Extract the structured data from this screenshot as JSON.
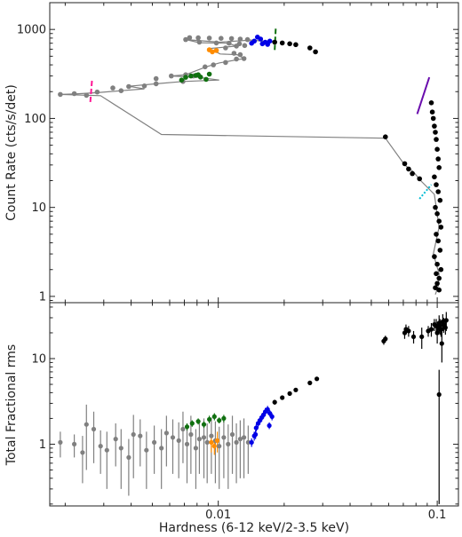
{
  "chart_data": [
    {
      "type": "scatter",
      "panel": "top",
      "xlabel": "",
      "ylabel": "Count Rate (cts/s/det)",
      "xscale": "log",
      "yscale": "log",
      "xlim": [
        0.0017,
        0.125
      ],
      "ylim": [
        0.85,
        2000
      ],
      "yticks": [
        1,
        10,
        100,
        1000
      ],
      "ytick_labels": [
        "1",
        "10",
        "100",
        "1000"
      ],
      "grid": false,
      "series": [
        {
          "color": "#808080",
          "role": "track-line",
          "points": [
            [
              0.0181,
              720
            ],
            [
              0.0141,
              760
            ],
            [
              0.0102,
              720
            ],
            [
              0.0071,
              770
            ],
            [
              0.0082,
              710
            ],
            [
              0.0111,
              700
            ],
            [
              0.0121,
              650
            ],
            [
              0.0091,
              610
            ],
            [
              0.0102,
              530
            ],
            [
              0.0122,
              520
            ],
            [
              0.0131,
              470
            ],
            [
              0.0101,
              420
            ],
            [
              0.0088,
              380
            ],
            [
              0.0071,
              310
            ],
            [
              0.0061,
              300
            ],
            [
              0.0081,
              290
            ],
            [
              0.0101,
              270
            ],
            [
              0.0069,
              260
            ],
            [
              0.0052,
              245
            ],
            [
              0.0039,
              230
            ],
            [
              0.0046,
              215
            ],
            [
              0.0036,
              205
            ],
            [
              0.0028,
              195
            ],
            [
              0.0022,
              188
            ],
            [
              0.0019,
              186
            ],
            [
              0.0029,
              180
            ],
            [
              0.0055,
              66
            ],
            [
              0.058,
              60
            ],
            [
              0.071,
              30
            ],
            [
              0.078,
              25
            ],
            [
              0.084,
              20
            ],
            [
              0.097,
              14
            ],
            [
              0.102,
              6
            ],
            [
              0.096,
              3
            ],
            [
              0.102,
              1.8
            ],
            [
              0.101,
              1.3
            ],
            [
              0.098,
              1.05
            ]
          ]
        },
        {
          "color": "#808080",
          "role": "points",
          "points": [
            [
              0.0071,
              770
            ],
            [
              0.0074,
              810
            ],
            [
              0.0081,
              805
            ],
            [
              0.0091,
              800
            ],
            [
              0.0103,
              795
            ],
            [
              0.0115,
              790
            ],
            [
              0.0126,
              780
            ],
            [
              0.0136,
              770
            ],
            [
              0.0082,
              720
            ],
            [
              0.0098,
              705
            ],
            [
              0.0112,
              700
            ],
            [
              0.0125,
              690
            ],
            [
              0.0108,
              620
            ],
            [
              0.0121,
              650
            ],
            [
              0.0132,
              660
            ],
            [
              0.0118,
              540
            ],
            [
              0.0126,
              520
            ],
            [
              0.0131,
              470
            ],
            [
              0.0121,
              465
            ],
            [
              0.0108,
              425
            ],
            [
              0.0095,
              400
            ],
            [
              0.0087,
              380
            ],
            [
              0.0071,
              310
            ],
            [
              0.0077,
              300
            ],
            [
              0.0061,
              300
            ],
            [
              0.0052,
              280
            ],
            [
              0.0069,
              260
            ],
            [
              0.0052,
              245
            ],
            [
              0.0046,
              232
            ],
            [
              0.0039,
              228
            ],
            [
              0.0033,
              220
            ],
            [
              0.0036,
              205
            ],
            [
              0.0028,
              198
            ],
            [
              0.0022,
              190
            ],
            [
              0.0019,
              186
            ],
            [
              0.0025,
              182
            ]
          ]
        },
        {
          "color": "#0000e6",
          "role": "points",
          "points": [
            [
              0.0142,
              700
            ],
            [
              0.0146,
              740
            ],
            [
              0.0151,
              820
            ],
            [
              0.0156,
              780
            ],
            [
              0.0159,
              690
            ],
            [
              0.0164,
              720
            ],
            [
              0.0168,
              680
            ],
            [
              0.0172,
              740
            ]
          ]
        },
        {
          "color": "#107010",
          "role": "points",
          "points": [
            [
              0.0071,
              290
            ],
            [
              0.0075,
              300
            ],
            [
              0.0079,
              305
            ],
            [
              0.0083,
              292
            ],
            [
              0.0088,
              275
            ],
            [
              0.0081,
              310
            ],
            [
              0.0091,
              315
            ],
            [
              0.0068,
              270
            ]
          ]
        },
        {
          "color": "#ff8c00",
          "role": "points",
          "points": [
            [
              0.0091,
              590
            ],
            [
              0.0094,
              560
            ],
            [
              0.0098,
              580
            ]
          ]
        },
        {
          "color": "#000000",
          "role": "points",
          "points": [
            [
              0.0181,
              720
            ],
            [
              0.0196,
              705
            ],
            [
              0.0212,
              690
            ],
            [
              0.0226,
              675
            ],
            [
              0.0262,
              620
            ],
            [
              0.0278,
              560
            ],
            [
              0.058,
              62
            ],
            [
              0.071,
              31
            ],
            [
              0.074,
              27
            ],
            [
              0.077,
              24
            ],
            [
              0.083,
              21
            ],
            [
              0.094,
              150
            ],
            [
              0.095,
              118
            ],
            [
              0.096,
              100
            ],
            [
              0.097,
              82
            ],
            [
              0.098,
              70
            ],
            [
              0.099,
              58
            ],
            [
              0.1,
              45
            ],
            [
              0.101,
              35
            ],
            [
              0.102,
              28
            ],
            [
              0.097,
              22
            ],
            [
              0.099,
              18
            ],
            [
              0.101,
              15
            ],
            [
              0.103,
              12
            ],
            [
              0.098,
              10
            ],
            [
              0.1,
              8.5
            ],
            [
              0.102,
              7
            ],
            [
              0.104,
              6
            ],
            [
              0.099,
              5
            ],
            [
              0.101,
              4.2
            ],
            [
              0.103,
              3.3
            ],
            [
              0.097,
              2.8
            ],
            [
              0.1,
              2.3
            ],
            [
              0.104,
              2
            ],
            [
              0.099,
              1.8
            ],
            [
              0.102,
              1.6
            ],
            [
              0.1,
              1.4
            ],
            [
              0.098,
              1.25
            ],
            [
              0.102,
              1.18
            ]
          ]
        }
      ],
      "markers": [
        {
          "color": "#ff1493",
          "style": "dashed",
          "from": [
            0.00265,
            265
          ],
          "to": [
            0.0026,
            145
          ]
        },
        {
          "color": "#107010",
          "style": "dashed",
          "from": [
            0.0183,
            1020
          ],
          "to": [
            0.0181,
            580
          ]
        },
        {
          "color": "#6a0dad",
          "style": "solid",
          "from": [
            0.081,
            112
          ],
          "to": [
            0.092,
            290
          ]
        },
        {
          "color": "#00bcd4",
          "style": "dotted",
          "from": [
            0.083,
            12.5
          ],
          "to": [
            0.094,
            18
          ]
        }
      ]
    },
    {
      "type": "scatter",
      "panel": "bottom",
      "xlabel": "Hardness (6-12 keV/2-3.5 keV)",
      "ylabel": "Total Fractional rms",
      "xscale": "log",
      "yscale": "log",
      "xlim": [
        0.0017,
        0.125
      ],
      "ylim": [
        0.19,
        45
      ],
      "xticks": [
        0.01,
        0.1
      ],
      "xtick_labels": [
        "0.01",
        "0.1"
      ],
      "yticks": [
        1,
        10
      ],
      "ytick_labels": [
        "1",
        "10"
      ],
      "grid": false,
      "series": [
        {
          "color": "#808080",
          "points": [
            [
              0.0019,
              1.05
            ],
            [
              0.0022,
              1.0
            ],
            [
              0.0024,
              0.8
            ],
            [
              0.0025,
              1.7
            ],
            [
              0.0027,
              1.5
            ],
            [
              0.0029,
              0.95
            ],
            [
              0.0031,
              0.85
            ],
            [
              0.0034,
              1.15
            ],
            [
              0.0036,
              0.9
            ],
            [
              0.0039,
              0.7
            ],
            [
              0.0041,
              1.3
            ],
            [
              0.0044,
              1.25
            ],
            [
              0.0047,
              0.85
            ],
            [
              0.0051,
              1.05
            ],
            [
              0.0055,
              0.9
            ],
            [
              0.0058,
              1.35
            ],
            [
              0.0062,
              1.2
            ],
            [
              0.0066,
              1.1
            ],
            [
              0.0069,
              1.5
            ],
            [
              0.0072,
              1.0
            ],
            [
              0.0075,
              1.3
            ],
            [
              0.0079,
              0.9
            ],
            [
              0.0082,
              1.15
            ],
            [
              0.0086,
              1.2
            ],
            [
              0.0089,
              1.05
            ],
            [
              0.0093,
              1.25
            ],
            [
              0.0097,
              1.1
            ],
            [
              0.0101,
              0.95
            ],
            [
              0.0106,
              1.2
            ],
            [
              0.0111,
              1.0
            ],
            [
              0.0116,
              1.3
            ],
            [
              0.0121,
              1.05
            ],
            [
              0.0126,
              1.15
            ],
            [
              0.0131,
              1.2
            ],
            [
              0.0137,
              1.05
            ]
          ],
          "errors": [
            0.35,
            0.3,
            0.45,
            1.2,
            0.9,
            0.5,
            0.55,
            0.6,
            0.6,
            0.45,
            0.9,
            0.7,
            0.55,
            0.6,
            0.6,
            0.8,
            0.75,
            0.7,
            0.9,
            0.65,
            0.85,
            0.6,
            0.7,
            0.8,
            0.7,
            0.8,
            0.75,
            0.65,
            0.8,
            0.7,
            0.85,
            0.7,
            0.75,
            0.8,
            0.6
          ]
        },
        {
          "color": "#107010",
          "points": [
            [
              0.0072,
              1.6
            ],
            [
              0.0076,
              1.75
            ],
            [
              0.0081,
              1.85
            ],
            [
              0.0086,
              1.7
            ],
            [
              0.0091,
              1.95
            ],
            [
              0.0096,
              2.1
            ],
            [
              0.0101,
              1.9
            ],
            [
              0.0106,
              2.0
            ]
          ],
          "errors": [
            0.15,
            0.15,
            0.15,
            0.15,
            0.2,
            0.2,
            0.15,
            0.2
          ]
        },
        {
          "color": "#ff8c00",
          "points": [
            [
              0.0093,
              1.05
            ],
            [
              0.0096,
              0.95
            ],
            [
              0.0099,
              1.1
            ]
          ],
          "errors": [
            0.25,
            0.2,
            0.3
          ]
        },
        {
          "color": "#0000e6",
          "points": [
            [
              0.0142,
              1.05
            ],
            [
              0.0146,
              1.25
            ],
            [
              0.0149,
              1.55
            ],
            [
              0.0152,
              1.75
            ],
            [
              0.0155,
              1.9
            ],
            [
              0.0158,
              2.05
            ],
            [
              0.0161,
              2.2
            ],
            [
              0.0164,
              2.4
            ],
            [
              0.0168,
              2.55
            ],
            [
              0.0172,
              2.3
            ],
            [
              0.0176,
              2.1
            ],
            [
              0.0171,
              1.65
            ],
            [
              0.0148,
              1.3
            ]
          ],
          "errors": [
            0.12,
            0.15,
            0.15,
            0.2,
            0.2,
            0.2,
            0.2,
            0.25,
            0.25,
            0.2,
            0.2,
            0.15,
            0.15
          ]
        },
        {
          "color": "#000000",
          "points": [
            [
              0.0181,
              3.1
            ],
            [
              0.0196,
              3.5
            ],
            [
              0.0212,
              3.9
            ],
            [
              0.0226,
              4.3
            ],
            [
              0.0262,
              5.2
            ],
            [
              0.0282,
              5.8
            ],
            [
              0.057,
              16
            ],
            [
              0.058,
              17
            ],
            [
              0.071,
              20
            ],
            [
              0.072,
              22
            ],
            [
              0.074,
              21
            ],
            [
              0.078,
              18
            ],
            [
              0.085,
              18
            ],
            [
              0.091,
              21
            ],
            [
              0.094,
              22
            ],
            [
              0.097,
              25
            ],
            [
              0.099,
              24
            ],
            [
              0.1,
              20
            ],
            [
              0.101,
              23
            ],
            [
              0.102,
              26
            ],
            [
              0.103,
              24
            ],
            [
              0.104,
              22
            ],
            [
              0.106,
              27
            ],
            [
              0.107,
              25
            ],
            [
              0.109,
              23
            ],
            [
              0.11,
              28
            ],
            [
              0.105,
              15
            ],
            [
              0.102,
              3.8
            ]
          ],
          "errors": [
            0.2,
            0.2,
            0.2,
            0.2,
            0.25,
            0.3,
            1.5,
            1.5,
            3,
            3,
            3,
            3,
            5,
            3,
            4,
            4,
            5,
            5,
            4,
            6,
            5,
            4,
            6,
            5,
            4,
            7,
            6,
            3.6
          ]
        }
      ]
    }
  ]
}
